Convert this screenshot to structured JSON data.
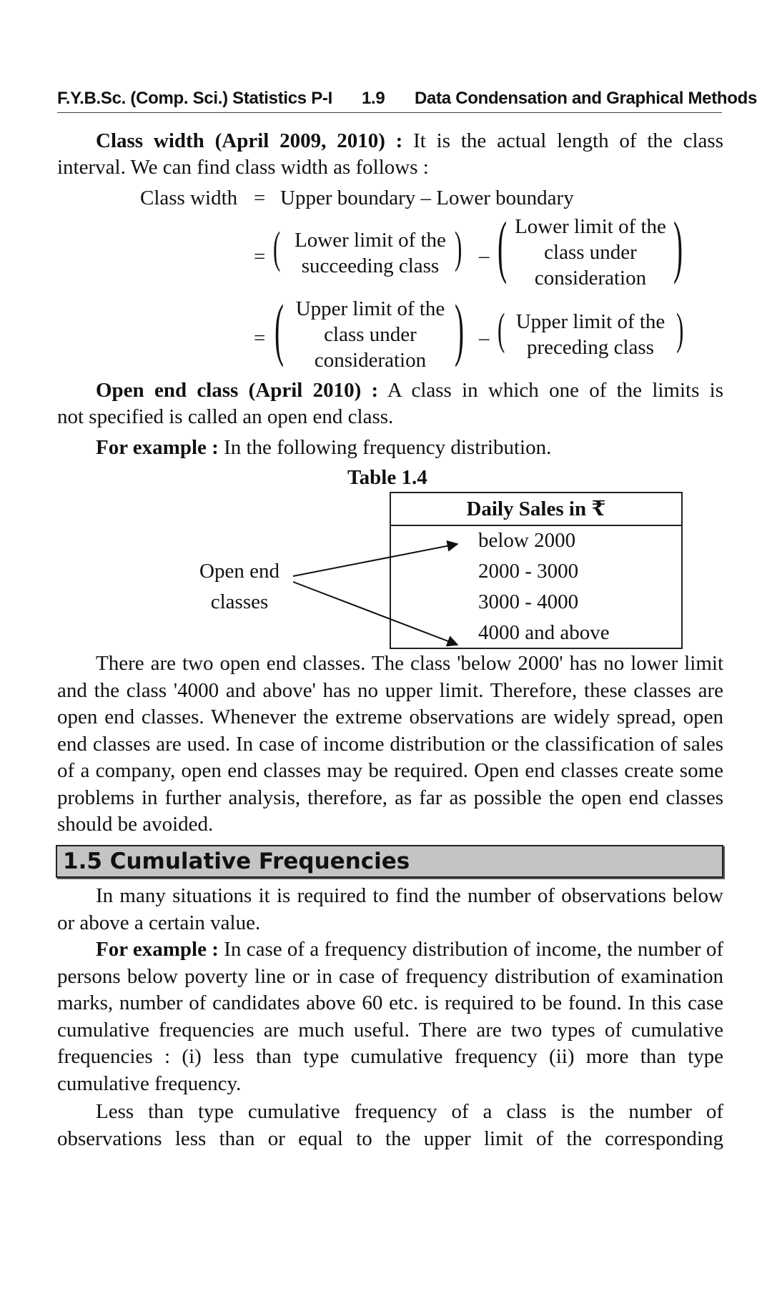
{
  "header": {
    "left": "F.Y.B.Sc. (Comp. Sci.) Statistics P-I",
    "page_no": "1.9",
    "right": "Data Condensation and Graphical Methods"
  },
  "class_width": {
    "term": "Class width (April 2009, 2010) :",
    "text_line1": " It is the actual length of the class",
    "text_line2": "interval. We can find class width as follows :",
    "formula_lhs": "Class width",
    "eq": "=",
    "formula_rhs": "Upper boundary – Lower boundary",
    "minus": "–",
    "alt1_a": [
      "Lower limit of the",
      "succeeding class"
    ],
    "alt1_b": [
      "Lower limit of the",
      "class under",
      "consideration"
    ],
    "alt2_a": [
      "Upper limit of the",
      "class under",
      "consideration"
    ],
    "alt2_b": [
      "Upper limit of the",
      "preceding class"
    ]
  },
  "open_end": {
    "term": "Open end class (April 2010) :",
    "text_line1": " A class in which one of the limits is",
    "text_line2": "not specified is called an open end class.",
    "example_term": "For example :",
    "example_text": " In the following frequency distribution.",
    "table_caption": "Table 1.4",
    "table_header": "Daily Sales in ₹",
    "table_rows": [
      "below 2000",
      "2000 - 3000",
      "3000 - 4000",
      "4000 and above"
    ],
    "label_line1": "Open end",
    "label_line2": "classes",
    "explanation": "There are two open end classes. The class 'below 2000' has no lower limit and the class '4000 and above' has no upper limit. Therefore, these classes are open end classes. Whenever the extreme observations are widely spread, open end classes are used. In case of income distribution or the classification of sales of a company, open end classes may be required. Open end classes create some problems in further analysis, therefore, as far as possible the open end classes should be avoided."
  },
  "section": {
    "title": "1.5 Cumulative Frequencies"
  },
  "cumulative": {
    "para1": "In many situations it is required to find the number of observations below or above a certain value.",
    "example_term": "For example :",
    "example_text": " In case of a frequency distribution of income, the number of persons below poverty line or in case of frequency distribution of examination marks, number of candidates above 60 etc. is required to be found. In this case cumulative frequencies are much useful. There are two types of cumulative frequencies : (i) less than type cumulative frequency (ii) more than type cumulative frequency.",
    "para3": "Less than type cumulative frequency of a class is the number of observations less than or equal to the upper limit of the corresponding"
  }
}
